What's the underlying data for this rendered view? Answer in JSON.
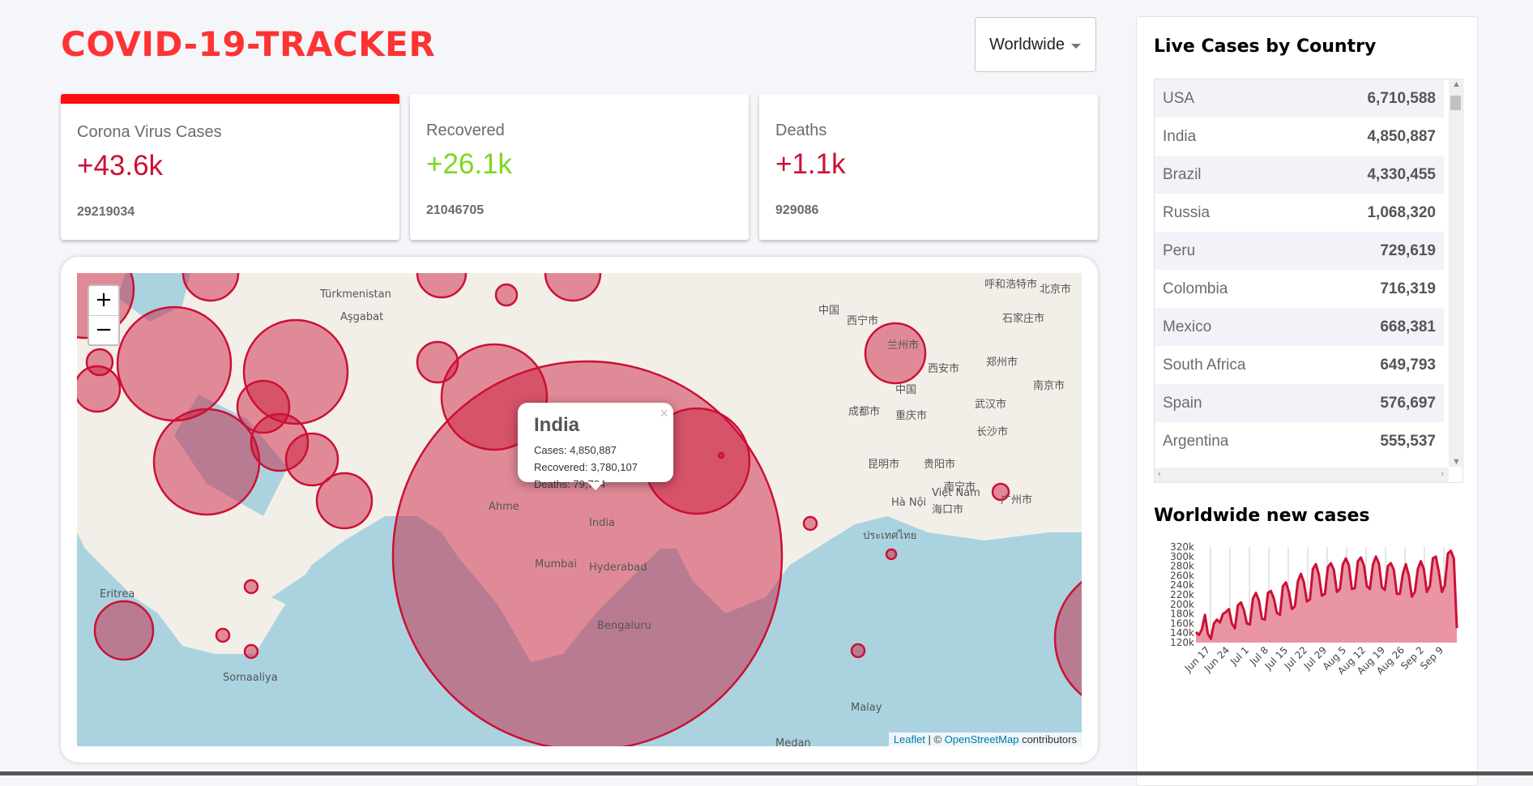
{
  "app": {
    "title": "COVID-19-TRACKER",
    "country_selected": "Worldwide"
  },
  "colors": {
    "accent": "#fe3333",
    "cases": "#cc1034",
    "recovered": "#7dd71d",
    "active_border": "#fc0f13"
  },
  "cards": [
    {
      "title": "Corona Virus Cases",
      "today": "+43.6k",
      "total": "29219034",
      "active": true,
      "color": "#cc1034"
    },
    {
      "title": "Recovered",
      "today": "+26.1k",
      "total": "21046705",
      "active": false,
      "color": "#7dd71d"
    },
    {
      "title": "Deaths",
      "today": "+1.1k",
      "total": "929086",
      "active": false,
      "color": "#cc1034"
    }
  ],
  "map": {
    "zoom_in": "+",
    "zoom_out": "−",
    "popup": {
      "country": "India",
      "cases": "Cases: 4,850,887",
      "recovered": "Recovered: 3,780,107",
      "deaths": "Deaths: 79,784",
      "close": "×"
    },
    "attribution": {
      "leaflet": "Leaflet",
      "sep": " | © ",
      "osm": "OpenStreetMap",
      "rest": " contributors"
    },
    "labels": [
      "Türkmenistan",
      "Aşgabat",
      "Ahme",
      "Mumbai",
      "Hyderabad",
      "India",
      "Bengaluru",
      "中国",
      "西宁市",
      "兰州市",
      "西安市",
      "成都市",
      "重庆市",
      "武汉市",
      "长沙市",
      "南宁市",
      "Hà Nội",
      "Việt Nam",
      "ประเทศไทย",
      "Somaaliya",
      "Eritrea",
      "Malay",
      "Medan",
      "海口市",
      "呼和浩特市",
      "北京市",
      "石家庄市",
      "郑州市",
      "南京市",
      "昆明市",
      "贵阳市",
      "广州市",
      "中国"
    ]
  },
  "sidebar": {
    "table_title": "Live Cases by Country",
    "chart_title": "Worldwide new cases",
    "countries": [
      {
        "country": "USA",
        "cases": "6,710,588"
      },
      {
        "country": "India",
        "cases": "4,850,887"
      },
      {
        "country": "Brazil",
        "cases": "4,330,455"
      },
      {
        "country": "Russia",
        "cases": "1,068,320"
      },
      {
        "country": "Peru",
        "cases": "729,619"
      },
      {
        "country": "Colombia",
        "cases": "716,319"
      },
      {
        "country": "Mexico",
        "cases": "668,381"
      },
      {
        "country": "South Africa",
        "cases": "649,793"
      },
      {
        "country": "Spain",
        "cases": "576,697"
      },
      {
        "country": "Argentina",
        "cases": "555,537"
      }
    ]
  },
  "chart_data": {
    "type": "area",
    "title": "Worldwide new cases",
    "xlabel": "",
    "ylabel": "",
    "ylim": [
      120000,
      320000
    ],
    "yticks": [
      "320k",
      "300k",
      "280k",
      "260k",
      "240k",
      "220k",
      "200k",
      "180k",
      "160k",
      "140k",
      "120k"
    ],
    "xticks": [
      "Jun 17",
      "Jun 24",
      "Jul 1",
      "Jul 8",
      "Jul 15",
      "Jul 22",
      "Jul 29",
      "Aug 5",
      "Aug 12",
      "Aug 19",
      "Aug 26",
      "Sep 2",
      "Sep 9"
    ],
    "grid": "vertical",
    "fill_color": "#e8899a",
    "line_color": "#cc1034",
    "values": [
      142000,
      136000,
      148000,
      178000,
      138000,
      128000,
      160000,
      168000,
      162000,
      180000,
      184000,
      190000,
      160000,
      150000,
      198000,
      204000,
      188000,
      160000,
      158000,
      212000,
      224000,
      208000,
      170000,
      168000,
      224000,
      228000,
      212000,
      182000,
      178000,
      238000,
      246000,
      226000,
      190000,
      196000,
      248000,
      264000,
      246000,
      206000,
      210000,
      274000,
      284000,
      262000,
      218000,
      222000,
      278000,
      286000,
      272000,
      226000,
      232000,
      284000,
      296000,
      282000,
      232000,
      234000,
      290000,
      298000,
      282000,
      238000,
      232000,
      282000,
      300000,
      286000,
      236000,
      230000,
      280000,
      286000,
      272000,
      222000,
      222000,
      264000,
      284000,
      260000,
      216000,
      226000,
      274000,
      290000,
      274000,
      226000,
      238000,
      296000,
      300000,
      268000,
      226000,
      240000,
      306000,
      312000,
      296000,
      150000
    ]
  }
}
